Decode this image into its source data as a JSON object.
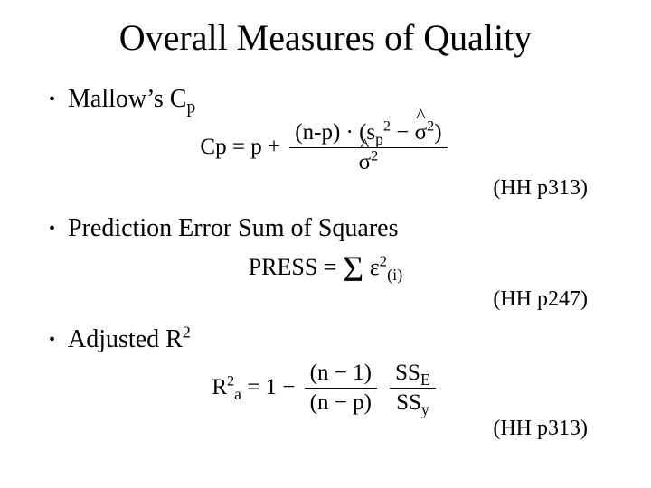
{
  "title": "Overall Measures of Quality",
  "bullets": {
    "b1_prefix": "Mallow’s C",
    "b1_sub": "p",
    "b2": "Prediction Error Sum of Squares",
    "b3_prefix": "Adjusted R",
    "b3_sup": "2"
  },
  "refs": {
    "r1": "(HH p313)",
    "r2": "(HH p247)",
    "r3": "(HH p313)"
  },
  "formulas": {
    "cp": {
      "lhs": "Cp = p + ",
      "num_a": "(n-p) · (s",
      "num_a_sub": "p",
      "num_a_sup": "2",
      "num_b": " − ",
      "num_c_sym": "σ",
      "num_c_sup": "2",
      "num_d": ")",
      "den_sym": "σ",
      "den_sup": "2"
    },
    "press": {
      "lhs": "PRESS = ",
      "sum": "Σ",
      "eps": "ε",
      "eps_sup": "2",
      "eps_sub": "(i)"
    },
    "ra": {
      "lhs_a": "R",
      "lhs_sub": "a",
      "lhs_sup": "2",
      "lhs_b": " = 1 − ",
      "f1_num": "(n − 1)",
      "f1_den": "(n − p)",
      "f2_num_a": "SS",
      "f2_num_sub": "E",
      "f2_den_a": "SS",
      "f2_den_sub": "y"
    }
  },
  "style": {
    "background": "#ffffff",
    "text_color": "#000000",
    "font_family": "Times New Roman",
    "title_fontsize": 40,
    "bullet_fontsize": 28,
    "ref_fontsize": 24,
    "formula_fontsize": 26
  }
}
